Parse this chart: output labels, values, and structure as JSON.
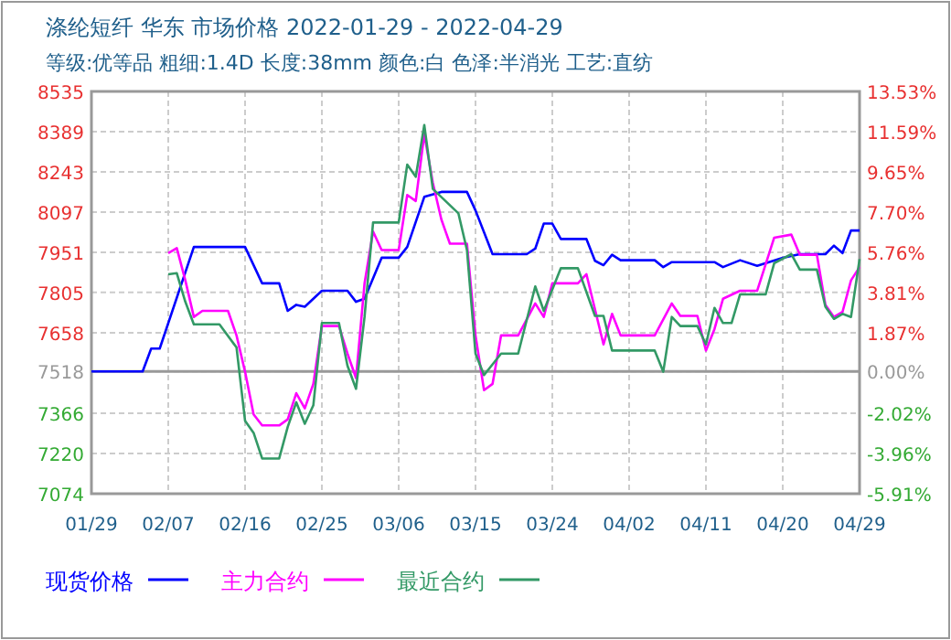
{
  "chart_data": {
    "type": "line",
    "title": "涤纶短纤 华东 市场价格 2022-01-29 - 2022-04-29",
    "subtitle": "等级:优等品 粗细:1.4D 长度:38mm 颜色:白 色泽:半消光 工艺:直纺",
    "xlim": [
      "2022-01-29",
      "2022-04-29"
    ],
    "xticks": [
      {
        "value": "2022-01-29",
        "label": "01/29"
      },
      {
        "value": "2022-02-07",
        "label": "02/07"
      },
      {
        "value": "2022-02-16",
        "label": "02/16"
      },
      {
        "value": "2022-02-25",
        "label": "02/25"
      },
      {
        "value": "2022-03-06",
        "label": "03/06"
      },
      {
        "value": "2022-03-15",
        "label": "03/15"
      },
      {
        "value": "2022-03-24",
        "label": "03/24"
      },
      {
        "value": "2022-04-02",
        "label": "04/02"
      },
      {
        "value": "2022-04-11",
        "label": "04/11"
      },
      {
        "value": "2022-04-20",
        "label": "04/20"
      },
      {
        "value": "2022-04-29",
        "label": "04/29"
      }
    ],
    "ylim": [
      7074,
      8535
    ],
    "yticks": [
      7074,
      7220,
      7366,
      7518,
      7658,
      7805,
      7951,
      8097,
      8243,
      8389,
      8535
    ],
    "y2lim": [
      -5.91,
      13.53
    ],
    "y2ticks": [
      {
        "value": -5.91,
        "label": "-5.91%"
      },
      {
        "value": -3.96,
        "label": "-3.96%"
      },
      {
        "value": -2.02,
        "label": "-2.02%"
      },
      {
        "value": 0,
        "label": "0.00%"
      },
      {
        "value": 1.87,
        "label": "1.87%"
      },
      {
        "value": 3.81,
        "label": "3.81%"
      },
      {
        "value": 5.76,
        "label": "5.76%"
      },
      {
        "value": 7.7,
        "label": "7.70%"
      },
      {
        "value": 9.65,
        "label": "9.65%"
      },
      {
        "value": 11.59,
        "label": "11.59%"
      },
      {
        "value": 13.53,
        "label": "13.53%"
      }
    ],
    "grid": true,
    "legend": "bottom",
    "line_style": "solid",
    "marker": "none",
    "ref_lines": [
      {
        "axis": "y",
        "value": 7518,
        "color": "#999999"
      }
    ],
    "series": [
      {
        "name": "现货价格",
        "color": "#0000ff",
        "x": [
          "2022-01-29",
          "2022-02-04",
          "2022-02-05",
          "2022-02-06",
          "2022-02-10",
          "2022-02-16",
          "2022-02-18",
          "2022-02-20",
          "2022-02-21",
          "2022-02-22",
          "2022-02-23",
          "2022-02-25",
          "2022-02-28",
          "2022-03-01",
          "2022-03-02",
          "2022-03-04",
          "2022-03-06",
          "2022-03-07",
          "2022-03-09",
          "2022-03-11",
          "2022-03-14",
          "2022-03-15",
          "2022-03-17",
          "2022-03-21",
          "2022-03-22",
          "2022-03-23",
          "2022-03-24",
          "2022-03-25",
          "2022-03-28",
          "2022-03-29",
          "2022-03-30",
          "2022-03-31",
          "2022-04-01",
          "2022-04-05",
          "2022-04-06",
          "2022-04-07",
          "2022-04-12",
          "2022-04-13",
          "2022-04-15",
          "2022-04-17",
          "2022-04-20",
          "2022-04-22",
          "2022-04-25",
          "2022-04-26",
          "2022-04-27",
          "2022-04-28",
          "2022-04-29"
        ],
        "values": [
          7518,
          7518,
          7601,
          7601,
          7970,
          7970,
          7838,
          7838,
          7738,
          7760,
          7753,
          7811,
          7811,
          7771,
          7782,
          7931,
          7931,
          7970,
          8152,
          8170,
          8170,
          8103,
          7944,
          7944,
          7964,
          8055,
          8055,
          7999,
          7999,
          7920,
          7904,
          7942,
          7922,
          7922,
          7897,
          7915,
          7915,
          7897,
          7922,
          7902,
          7931,
          7944,
          7944,
          7975,
          7948,
          8030,
          8030
        ]
      },
      {
        "name": "主力合约",
        "color": "#ff00ff",
        "x": [
          "2022-02-07",
          "2022-02-08",
          "2022-02-09",
          "2022-02-10",
          "2022-02-11",
          "2022-02-14",
          "2022-02-15",
          "2022-02-16",
          "2022-02-17",
          "2022-02-18",
          "2022-02-20",
          "2022-02-21",
          "2022-02-22",
          "2022-02-23",
          "2022-02-24",
          "2022-02-25",
          "2022-02-27",
          "2022-02-28",
          "2022-03-01",
          "2022-03-02",
          "2022-03-03",
          "2022-03-04",
          "2022-03-06",
          "2022-03-07",
          "2022-03-08",
          "2022-03-09",
          "2022-03-10",
          "2022-03-11",
          "2022-03-12",
          "2022-03-14",
          "2022-03-15",
          "2022-03-16",
          "2022-03-17",
          "2022-03-18",
          "2022-03-20",
          "2022-03-22",
          "2022-03-23",
          "2022-03-24",
          "2022-03-27",
          "2022-03-28",
          "2022-03-30",
          "2022-03-31",
          "2022-04-01",
          "2022-04-05",
          "2022-04-07",
          "2022-04-08",
          "2022-04-10",
          "2022-04-11",
          "2022-04-12",
          "2022-04-13",
          "2022-04-15",
          "2022-04-17",
          "2022-04-19",
          "2022-04-21",
          "2022-04-22",
          "2022-04-24",
          "2022-04-25",
          "2022-04-26",
          "2022-04-27",
          "2022-04-28",
          "2022-04-29"
        ],
        "values": [
          7948,
          7966,
          7849,
          7716,
          7738,
          7738,
          7649,
          7517,
          7362,
          7322,
          7322,
          7344,
          7439,
          7384,
          7473,
          7683,
          7683,
          7583,
          7494,
          7838,
          8026,
          7959,
          7959,
          8159,
          8137,
          8380,
          8203,
          8070,
          7982,
          7982,
          7649,
          7450,
          7473,
          7649,
          7649,
          7765,
          7716,
          7838,
          7838,
          7871,
          7616,
          7727,
          7649,
          7649,
          7765,
          7720,
          7720,
          7594,
          7672,
          7782,
          7811,
          7811,
          8004,
          8015,
          7942,
          7942,
          7760,
          7716,
          7734,
          7849,
          7897
        ]
      },
      {
        "name": "最近合约",
        "color": "#339966",
        "x": [
          "2022-02-07",
          "2022-02-08",
          "2022-02-09",
          "2022-02-10",
          "2022-02-13",
          "2022-02-15",
          "2022-02-16",
          "2022-02-17",
          "2022-02-18",
          "2022-02-20",
          "2022-02-21",
          "2022-02-22",
          "2022-02-23",
          "2022-02-24",
          "2022-02-25",
          "2022-02-27",
          "2022-02-28",
          "2022-03-01",
          "2022-03-02",
          "2022-03-03",
          "2022-03-06",
          "2022-03-07",
          "2022-03-08",
          "2022-03-09",
          "2022-03-10",
          "2022-03-13",
          "2022-03-14",
          "2022-03-15",
          "2022-03-16",
          "2022-03-18",
          "2022-03-20",
          "2022-03-22",
          "2022-03-23",
          "2022-03-25",
          "2022-03-27",
          "2022-03-29",
          "2022-03-30",
          "2022-03-31",
          "2022-04-05",
          "2022-04-06",
          "2022-04-07",
          "2022-04-08",
          "2022-04-10",
          "2022-04-11",
          "2022-04-12",
          "2022-04-13",
          "2022-04-14",
          "2022-04-15",
          "2022-04-18",
          "2022-04-19",
          "2022-04-21",
          "2022-04-22",
          "2022-04-24",
          "2022-04-25",
          "2022-04-26",
          "2022-04-27",
          "2022-04-28",
          "2022-04-29"
        ],
        "values": [
          7871,
          7875,
          7771,
          7689,
          7689,
          7605,
          7339,
          7295,
          7202,
          7202,
          7317,
          7406,
          7328,
          7395,
          7694,
          7694,
          7539,
          7455,
          7716,
          8059,
          8059,
          8269,
          8225,
          8413,
          8181,
          8092,
          7959,
          7583,
          7505,
          7583,
          7583,
          7827,
          7738,
          7893,
          7893,
          7720,
          7720,
          7594,
          7594,
          7517,
          7716,
          7683,
          7683,
          7616,
          7749,
          7694,
          7694,
          7798,
          7798,
          7911,
          7944,
          7888,
          7888,
          7753,
          7709,
          7727,
          7716,
          7926
        ]
      }
    ]
  }
}
